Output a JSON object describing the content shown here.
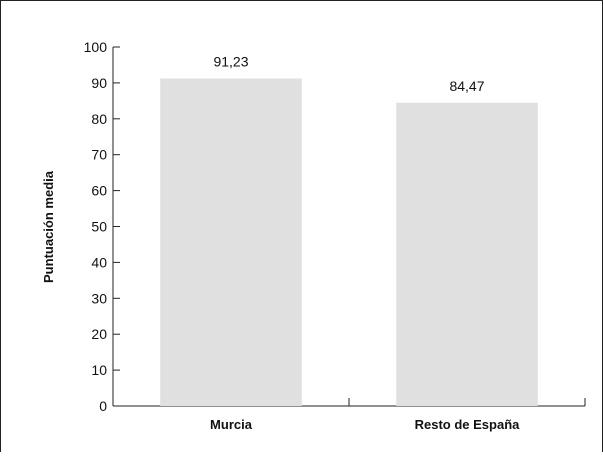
{
  "chart_data": {
    "type": "bar",
    "title": "",
    "xlabel": "",
    "ylabel": "Puntuación media",
    "categories": [
      "Murcia",
      "Resto de España"
    ],
    "values": [
      91.23,
      84.47
    ],
    "value_labels": [
      "91,23",
      "84,47"
    ],
    "ylim": [
      0,
      100
    ],
    "yticks": [
      0,
      10,
      20,
      30,
      40,
      50,
      60,
      70,
      80,
      90,
      100
    ],
    "ytick_labels": [
      "0",
      "10",
      "20",
      "30",
      "40",
      "50",
      "60",
      "70",
      "80",
      "90",
      "100"
    ],
    "grid": false,
    "legend": "none",
    "bar_color": "#e0e0e0",
    "axis_color": "#222222"
  }
}
